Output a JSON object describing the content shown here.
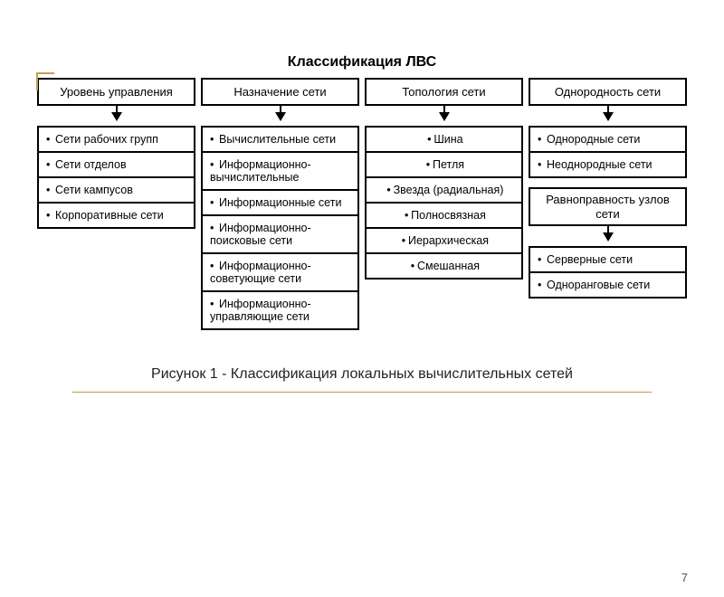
{
  "title": "Классификация ЛВС",
  "columns": [
    {
      "header": "Уровень управления",
      "items": [
        "Сети рабочих групп",
        "Сети отделов",
        "Сети кампусов",
        "Корпоративные сети"
      ]
    },
    {
      "header": "Назначение сети",
      "items": [
        "Вычислительные сети",
        "Информационно-вычислительные",
        "Информационные сети",
        "Информационно-поисковые сети",
        "Информационно-советующие сети",
        "Информационно-управляющие сети"
      ]
    },
    {
      "header": "Топология сети",
      "items": [
        "Шина",
        "Петля",
        "Звезда (радиальная)",
        "Полносвязная",
        "Иерархическая",
        "Смешанная"
      ]
    },
    {
      "header": "Однородность сети",
      "items": [
        "Однородные сети",
        "Неоднородные сети"
      ],
      "sub_header": "Равноправность узлов сети",
      "sub_items": [
        "Серверные сети",
        "Одноранговые сети"
      ]
    }
  ],
  "caption": "Рисунок 1 - Классификация локальных вычислительных сетей",
  "page_number": "7",
  "colors": {
    "border": "#000000",
    "accent": "#b89a4a",
    "background": "#ffffff",
    "text": "#000000"
  },
  "layout": {
    "type": "tree",
    "box_border_width": 2,
    "column_count": 4,
    "font_family": "Arial",
    "title_fontsize": 16,
    "header_fontsize": 13,
    "item_fontsize": 12.5,
    "caption_fontsize": 16
  }
}
